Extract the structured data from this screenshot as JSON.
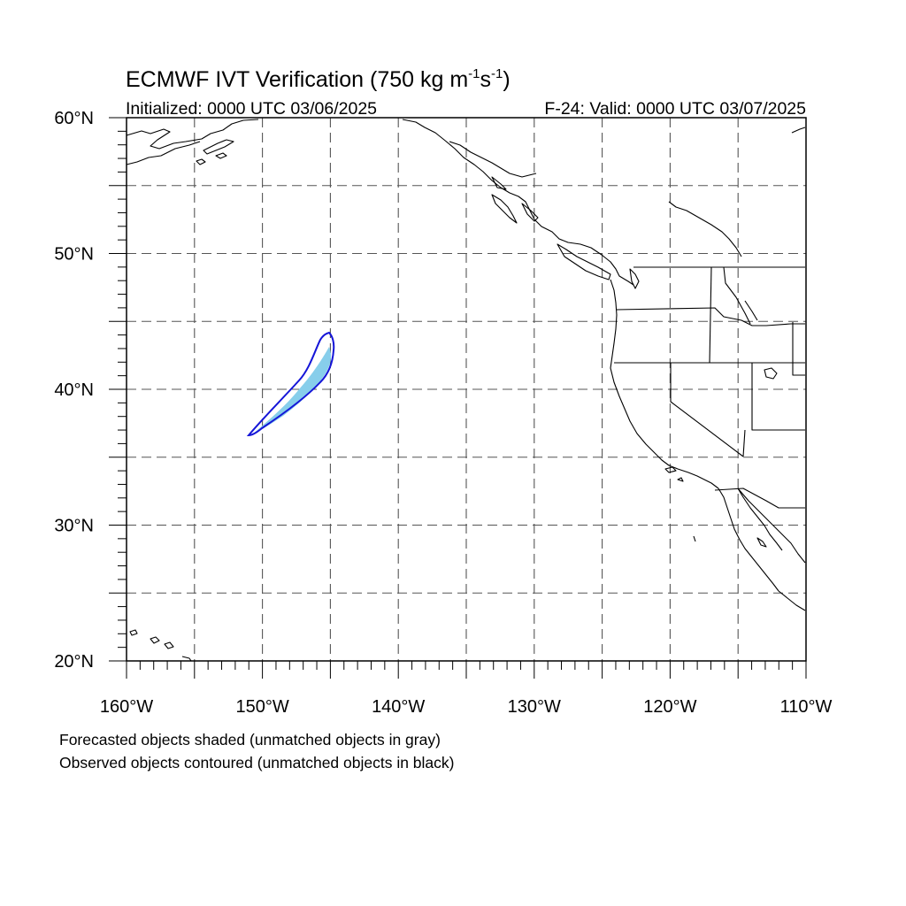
{
  "title": {
    "prefix": "ECMWF IVT Verification (750 kg m",
    "sup1": "-1",
    "mid": "s",
    "sup2": "-1",
    "suffix": ")"
  },
  "initialized_label": "Initialized: 0000 UTC 03/06/2025",
  "valid_label": "F-24: Valid: 0000 UTC 03/07/2025",
  "map": {
    "lon_range": [
      -160,
      -110
    ],
    "lat_range": [
      20,
      60
    ],
    "lon_ticks": [
      {
        "value": -160,
        "label": "160°W"
      },
      {
        "value": -150,
        "label": "150°W"
      },
      {
        "value": -140,
        "label": "140°W"
      },
      {
        "value": -130,
        "label": "130°W"
      },
      {
        "value": -120,
        "label": "120°W"
      },
      {
        "value": -110,
        "label": "110°W"
      }
    ],
    "lat_ticks": [
      {
        "value": 60,
        "label": "60°N"
      },
      {
        "value": 50,
        "label": "50°N"
      },
      {
        "value": 40,
        "label": "40°N"
      },
      {
        "value": 30,
        "label": "30°N"
      },
      {
        "value": 20,
        "label": "20°N"
      }
    ],
    "gridline_step_deg": 5,
    "colors": {
      "forecast_fill": "#87ceeb",
      "observed_contour": "#1515d8",
      "coast": "#000000",
      "grid": "#555555"
    }
  },
  "legend": {
    "line1": "Forecasted objects shaded (unmatched objects in gray)",
    "line2": "Observed objects contoured (unmatched objects in black)"
  }
}
